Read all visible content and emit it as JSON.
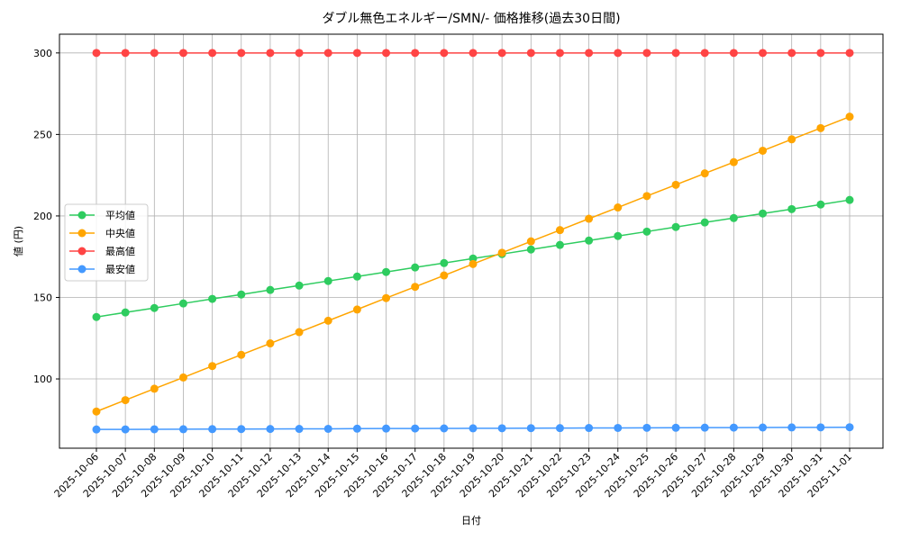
{
  "chart_data": {
    "type": "line",
    "title": "ダブル無色エネルギー/SMN/- 価格推移(過去30日間)",
    "xlabel": "日付",
    "ylabel": "値 (円)",
    "ylim": [
      57.5,
      311.5
    ],
    "yticks": [
      100,
      150,
      200,
      250,
      300
    ],
    "grid": true,
    "legend_position": "center-left",
    "x": [
      "2025-10-06",
      "2025-10-07",
      "2025-10-08",
      "2025-10-09",
      "2025-10-10",
      "2025-10-11",
      "2025-10-12",
      "2025-10-13",
      "2025-10-14",
      "2025-10-15",
      "2025-10-16",
      "2025-10-17",
      "2025-10-18",
      "2025-10-19",
      "2025-10-20",
      "2025-10-21",
      "2025-10-22",
      "2025-10-23",
      "2025-10-24",
      "2025-10-25",
      "2025-10-26",
      "2025-10-27",
      "2025-10-28",
      "2025-10-29",
      "2025-10-30",
      "2025-10-31",
      "2025-11-01"
    ],
    "series": [
      {
        "name": "平均値",
        "color": "#2ecc5f",
        "values": [
          138,
          140.8,
          143.5,
          146.3,
          149.1,
          151.8,
          154.6,
          157.3,
          160.1,
          162.8,
          165.6,
          168.4,
          171.1,
          173.9,
          176.6,
          179.4,
          182.2,
          184.9,
          187.7,
          190.4,
          193.2,
          196.0,
          198.7,
          201.5,
          204.2,
          207.0,
          209.8
        ]
      },
      {
        "name": "中央値",
        "color": "#ffa500",
        "values": [
          80,
          87,
          94,
          100.9,
          107.9,
          114.8,
          121.8,
          128.7,
          135.7,
          142.6,
          149.6,
          156.5,
          163.5,
          170.5,
          177.4,
          184.4,
          191.3,
          198.3,
          205.2,
          212.2,
          219.1,
          226.1,
          233.0,
          240.0,
          247.0,
          253.9,
          260.9
        ]
      },
      {
        "name": "最高値",
        "color": "#ff4444",
        "values": [
          300,
          300,
          300,
          300,
          300,
          300,
          300,
          300,
          300,
          300,
          300,
          300,
          300,
          300,
          300,
          300,
          300,
          300,
          300,
          300,
          300,
          300,
          300,
          300,
          300,
          300,
          300
        ]
      },
      {
        "name": "最安値",
        "color": "#4499ff",
        "values": [
          69.0,
          69.05,
          69.1,
          69.15,
          69.2,
          69.25,
          69.3,
          69.35,
          69.4,
          69.5,
          69.55,
          69.6,
          69.65,
          69.7,
          69.75,
          69.8,
          69.85,
          69.9,
          69.95,
          70.0,
          70.05,
          70.1,
          70.15,
          70.2,
          70.25,
          70.3,
          70.35
        ]
      }
    ]
  }
}
